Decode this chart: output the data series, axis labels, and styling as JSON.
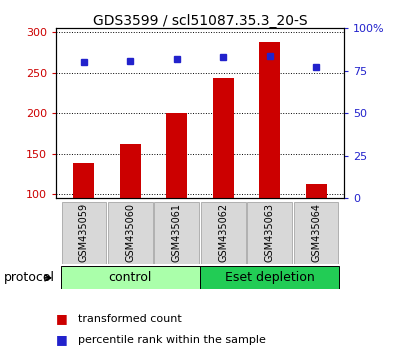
{
  "title": "GDS3599 / scl51087.35.3_20-S",
  "samples": [
    "GSM435059",
    "GSM435060",
    "GSM435061",
    "GSM435062",
    "GSM435063",
    "GSM435064"
  ],
  "transformed_counts": [
    138,
    162,
    200,
    243,
    288,
    113
  ],
  "percentile_ranks": [
    80,
    81,
    82,
    83,
    84,
    77
  ],
  "ylim_left": [
    95,
    305
  ],
  "ylim_right": [
    0,
    100
  ],
  "yticks_left": [
    100,
    150,
    200,
    250,
    300
  ],
  "yticks_right": [
    0,
    25,
    50,
    75,
    100
  ],
  "bar_color": "#cc0000",
  "marker_color": "#2222cc",
  "bar_width": 0.45,
  "groups": [
    {
      "label": "control",
      "indices": [
        0,
        1,
        2
      ],
      "color": "#aaffaa"
    },
    {
      "label": "Eset depletion",
      "indices": [
        3,
        4,
        5
      ],
      "color": "#22cc55"
    }
  ],
  "protocol_label": "protocol",
  "legend_bar_label": "transformed count",
  "legend_marker_label": "percentile rank within the sample",
  "title_fontsize": 10,
  "tick_fontsize": 8,
  "sample_fontsize": 7,
  "group_fontsize": 9,
  "legend_fontsize": 8
}
